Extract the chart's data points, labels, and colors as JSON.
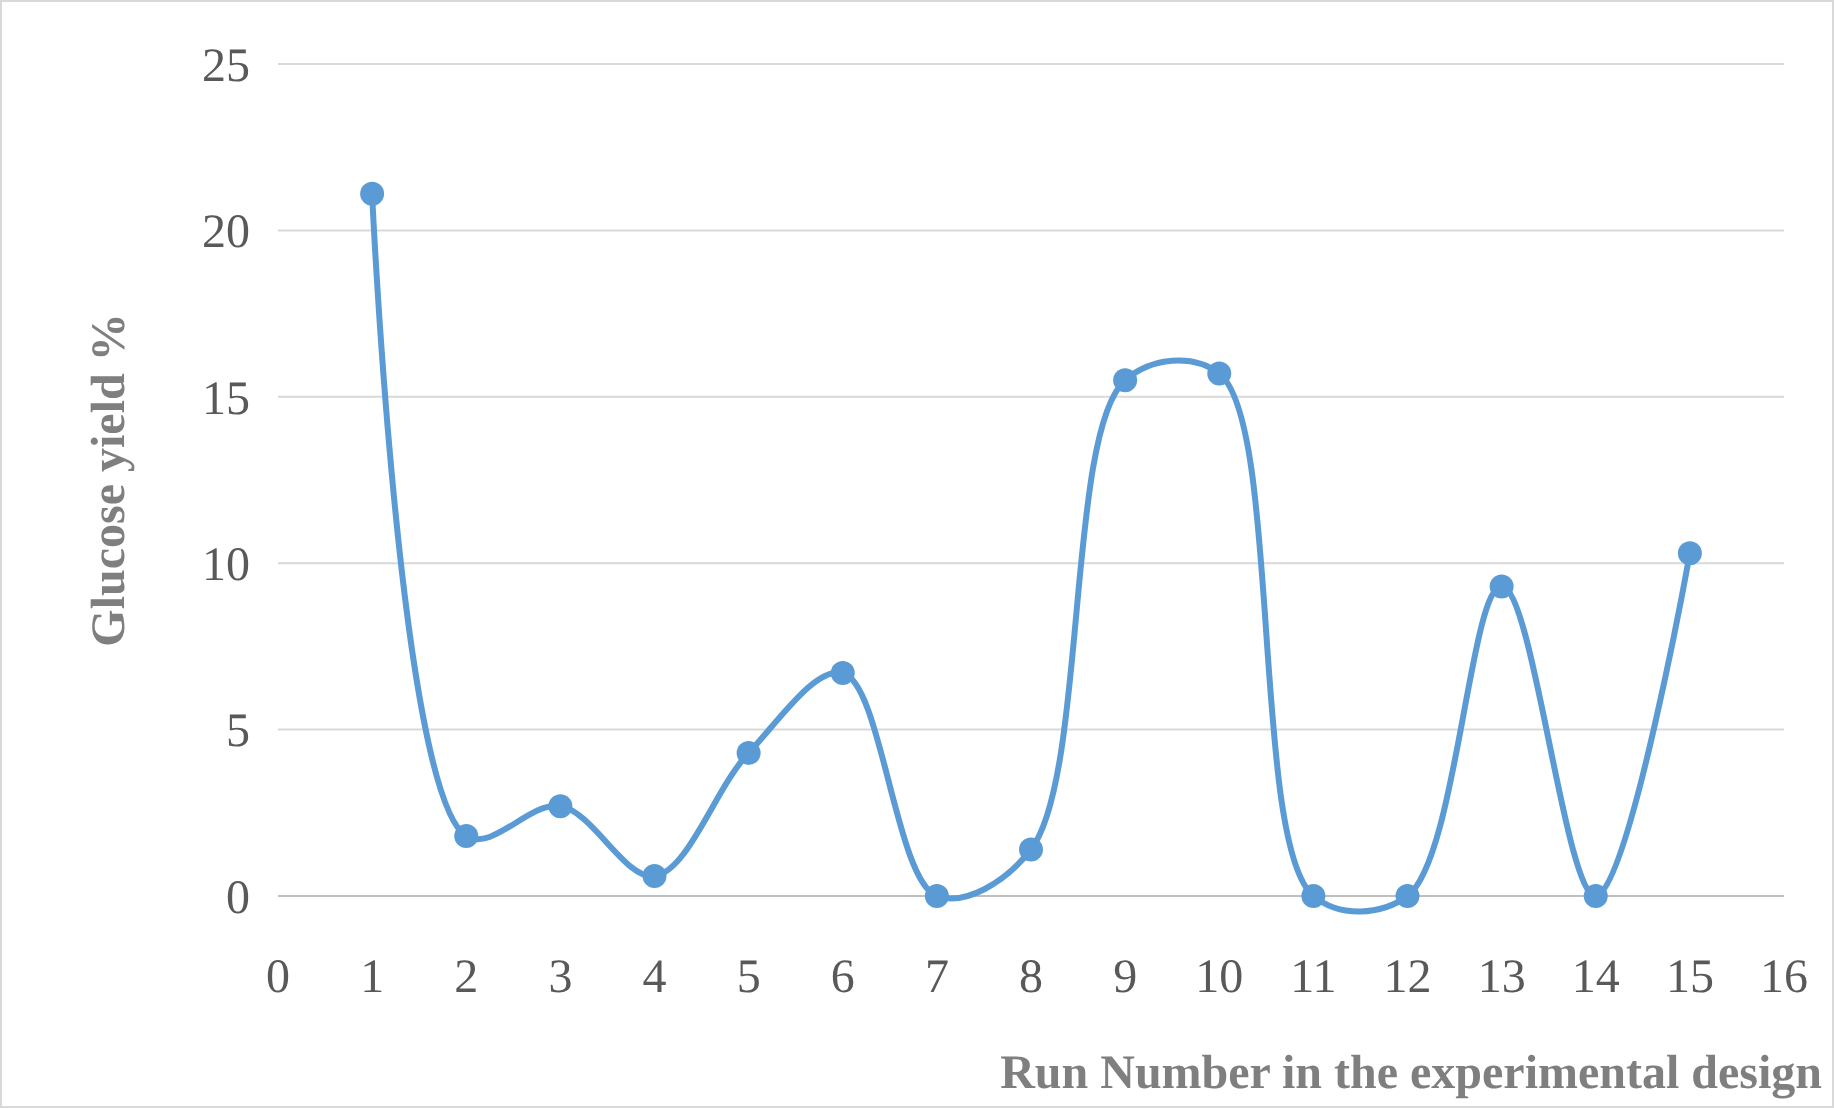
{
  "chart_data": {
    "type": "line",
    "xlabel": "Run Number in the experimental design",
    "ylabel": "Glucose yield %",
    "x": [
      1,
      2,
      3,
      4,
      5,
      6,
      7,
      8,
      9,
      10,
      11,
      12,
      13,
      14,
      15
    ],
    "series": [
      {
        "color": "#5b9bd5",
        "values": [
          21.1,
          1.8,
          2.7,
          0.6,
          4.3,
          6.7,
          0,
          1.4,
          15.5,
          15.7,
          0,
          0,
          9.3,
          0,
          10.3
        ]
      }
    ],
    "xlim": [
      0,
      16
    ],
    "xticks": [
      0,
      1,
      2,
      3,
      4,
      5,
      6,
      7,
      8,
      9,
      10,
      11,
      12,
      13,
      14,
      15,
      16
    ],
    "ylim": [
      0,
      25
    ],
    "yticks": [
      0,
      5,
      10,
      15,
      20,
      25
    ],
    "grid": "y",
    "marker": "circle",
    "line_style": "solid"
  }
}
